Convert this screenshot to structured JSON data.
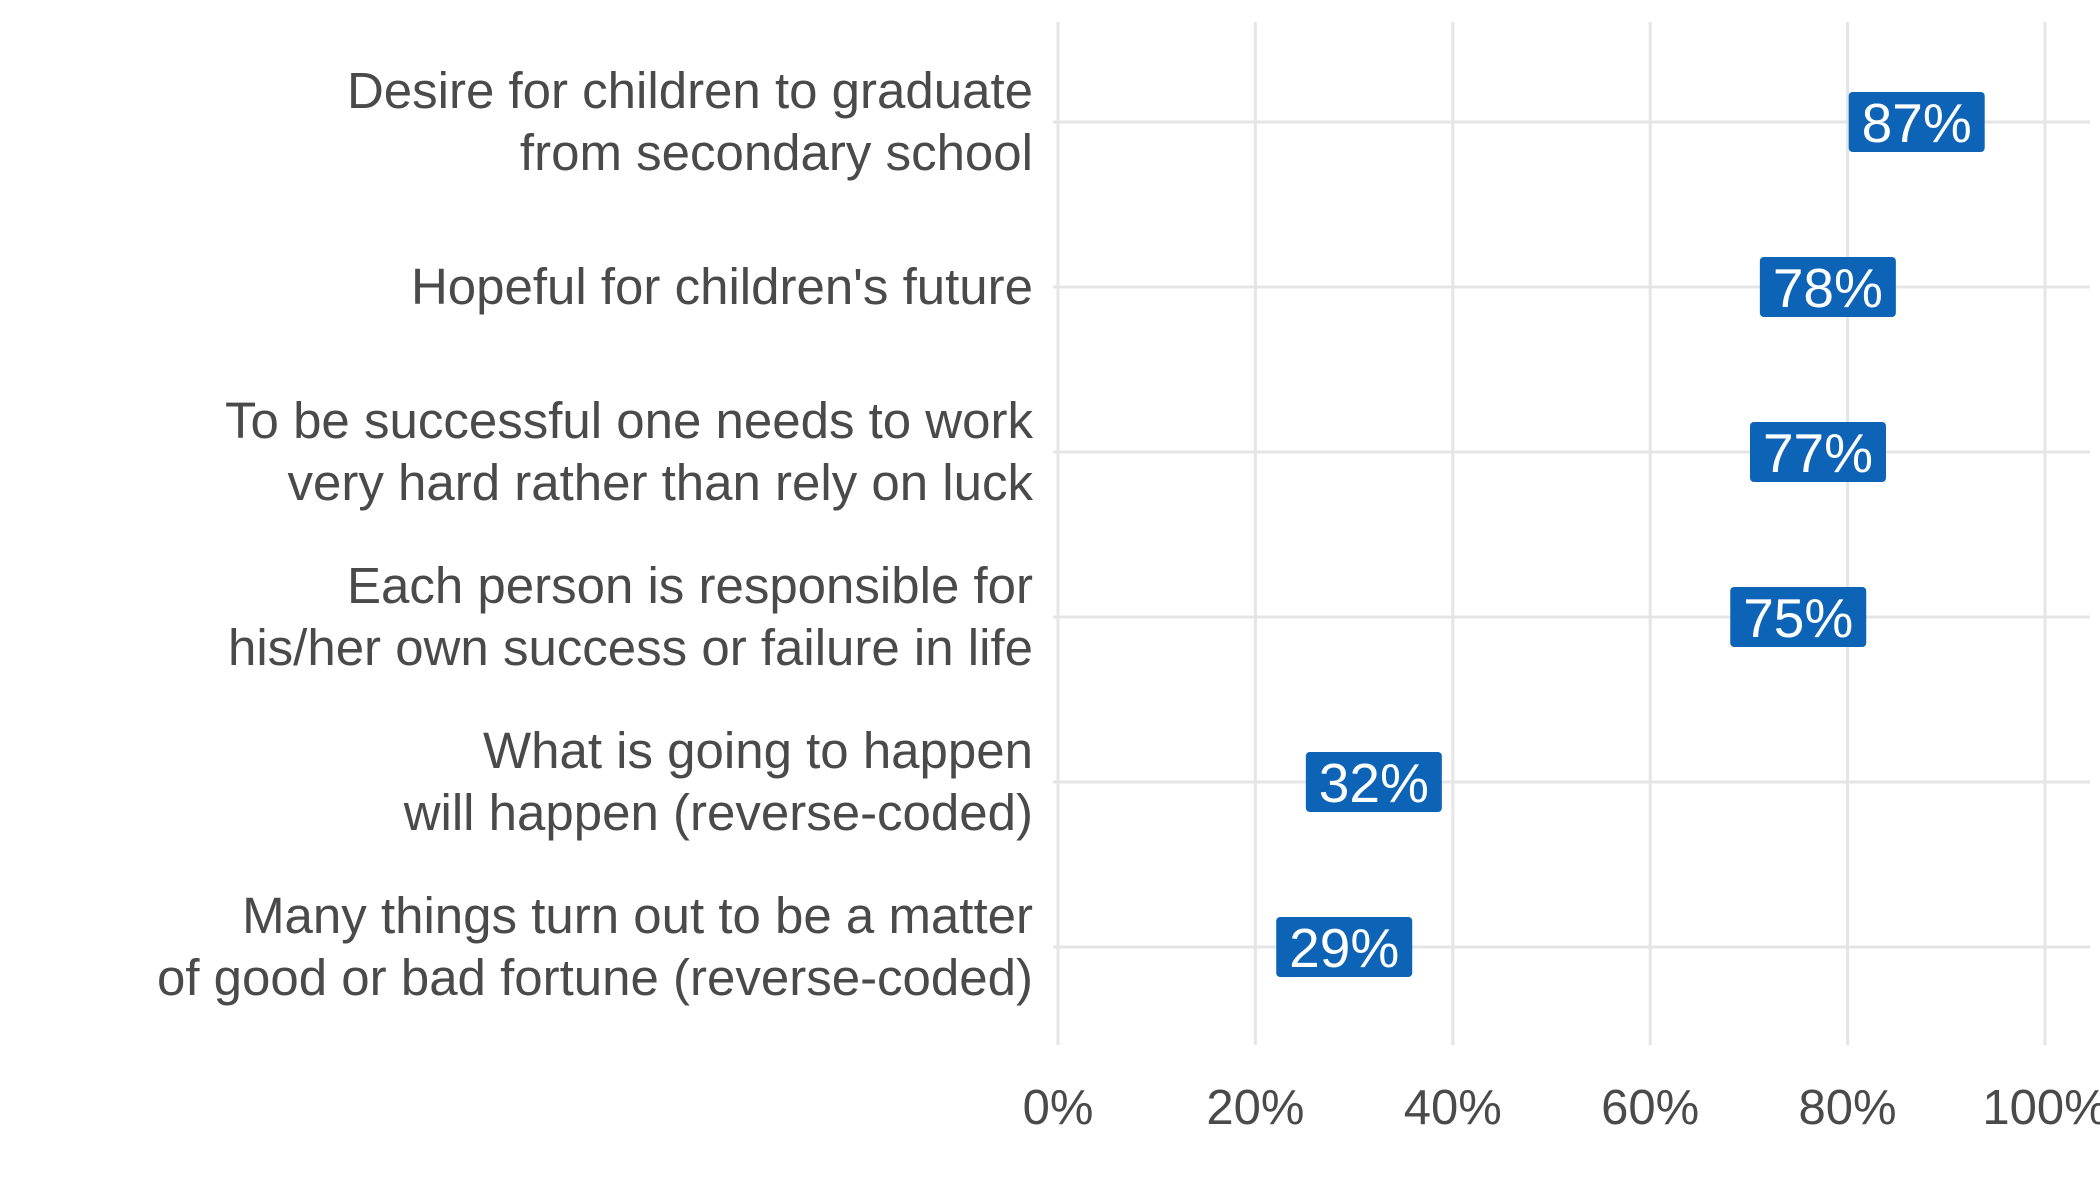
{
  "chart_data": {
    "type": "dot",
    "title": "",
    "xlabel": "",
    "ylabel": "",
    "xlim": [
      0,
      100
    ],
    "x_ticks": [
      0,
      20,
      40,
      60,
      80,
      100
    ],
    "x_tick_labels": [
      "0%",
      "20%",
      "40%",
      "60%",
      "80%",
      "100%"
    ],
    "grid": true,
    "categories": [
      [
        "Desire for children to graduate",
        "from secondary school"
      ],
      [
        "Hopeful for children's future"
      ],
      [
        "To be successful one needs to work",
        "very hard rather than rely on luck"
      ],
      [
        "Each person is responsible for",
        "his/her own success or failure in life"
      ],
      [
        "What is going to happen",
        "will happen (reverse-coded)"
      ],
      [
        "Many things turn out to be a matter",
        "of good or bad fortune (reverse-coded)"
      ]
    ],
    "values": [
      87,
      78,
      77,
      75,
      32,
      29
    ],
    "value_labels": [
      "87%",
      "78%",
      "77%",
      "75%",
      "32%",
      "29%"
    ],
    "colors": {
      "label_fill": "#0d63b6",
      "label_text": "#ffffff",
      "grid": "#e5e5e5",
      "axis_text": "#4a4a4a"
    }
  }
}
